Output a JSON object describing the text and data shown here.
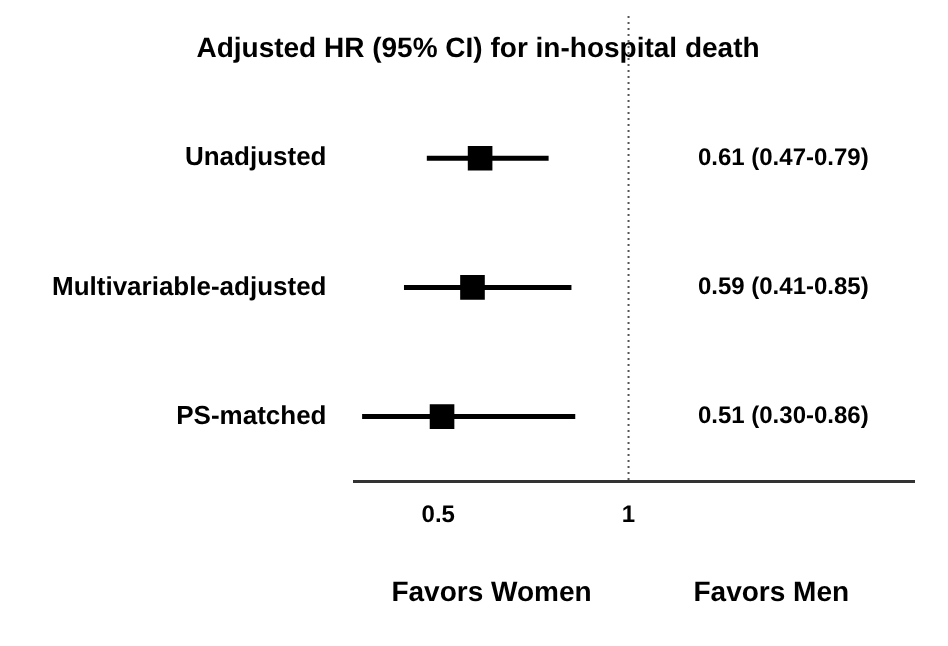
{
  "chart_data": {
    "type": "scatter",
    "title": "Adjusted HR (95% CI) for in-hospital death",
    "orientation": "horizontal",
    "categories": [
      "Unadjusted",
      "Multivariable-adjusted",
      "PS-matched"
    ],
    "values": [
      0.61,
      0.59,
      0.51
    ],
    "errors": [
      [
        0.47,
        0.79
      ],
      [
        0.41,
        0.85
      ],
      [
        0.3,
        0.86
      ]
    ],
    "color": "#000000",
    "marker": "square",
    "xlim": [
      0.28,
      1.75
    ],
    "xticks": [
      0.5,
      1
    ],
    "ref_lines": [
      {
        "axis": "x",
        "value": 1,
        "color": "#555555",
        "line_style": "dotted"
      }
    ],
    "annotations": [
      "0.61 (0.47-0.79)",
      "0.59 (0.41-0.85)",
      "0.51 (0.30-0.86)",
      "Favors Women",
      "Favors Men"
    ]
  }
}
